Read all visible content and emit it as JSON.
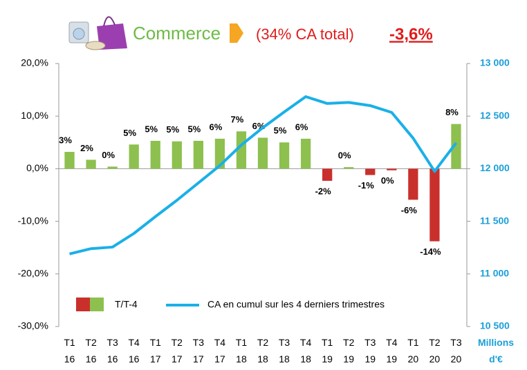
{
  "chart_data": {
    "type": "bar_line",
    "title": "Commerce",
    "subtitle": "(34% CA total)",
    "headline_value": "-3,6%",
    "categories": [
      "T1 16",
      "T2 16",
      "T3 16",
      "T4 16",
      "T1 17",
      "T2 17",
      "T3 17",
      "T4 17",
      "T1 18",
      "T2 18",
      "T3 18",
      "T4 18",
      "T1 19",
      "T2 19",
      "T3 19",
      "T4 19",
      "T1 20",
      "T2 20",
      "T3 20"
    ],
    "series": [
      {
        "name": "T/T-4",
        "type": "bar",
        "color": "#8dc04f",
        "negative_color": "#c9302c",
        "values": [
          3.2,
          1.7,
          0.4,
          4.6,
          5.3,
          5.2,
          5.3,
          5.7,
          7.1,
          5.9,
          5.0,
          5.7,
          -2.3,
          0.3,
          -1.2,
          -0.3,
          -5.9,
          -13.8,
          8.5
        ],
        "value_labels": [
          "3%",
          "2%",
          "0%",
          "5%",
          "5%",
          "5%",
          "5%",
          "6%",
          "7%",
          "6%",
          "5%",
          "6%",
          "-2%",
          "0%",
          "-1%",
          "0%",
          "-6%",
          "-14%",
          "8%"
        ]
      },
      {
        "name": "CA en cumul sur les 4 derniers trimestres",
        "type": "line",
        "axis": "y2",
        "color": "#1ab0e8",
        "values": [
          11190,
          11240,
          11255,
          11385,
          11545,
          11700,
          11865,
          12030,
          12225,
          12390,
          12540,
          12685,
          12620,
          12630,
          12600,
          12535,
          12290,
          11975,
          12245
        ]
      }
    ],
    "ylim": [
      -30,
      20
    ],
    "yticks": [
      {
        "value": -30,
        "label": "-30,0%"
      },
      {
        "value": -20,
        "label": "-20,0%"
      },
      {
        "value": -10,
        "label": "-10,0%"
      },
      {
        "value": 0,
        "label": "0,0%"
      },
      {
        "value": 10,
        "label": "10,0%"
      },
      {
        "value": 20,
        "label": "20,0%"
      }
    ],
    "y2lim": [
      10500,
      13000
    ],
    "y2ticks": [
      {
        "value": 10500,
        "label": "10 500"
      },
      {
        "value": 11000,
        "label": "11 000"
      },
      {
        "value": 11500,
        "label": "11 500"
      },
      {
        "value": 12000,
        "label": "12 000"
      },
      {
        "value": 12500,
        "label": "12 500"
      },
      {
        "value": 13000,
        "label": "13 000"
      }
    ],
    "y2_label": "Millions d'€"
  }
}
